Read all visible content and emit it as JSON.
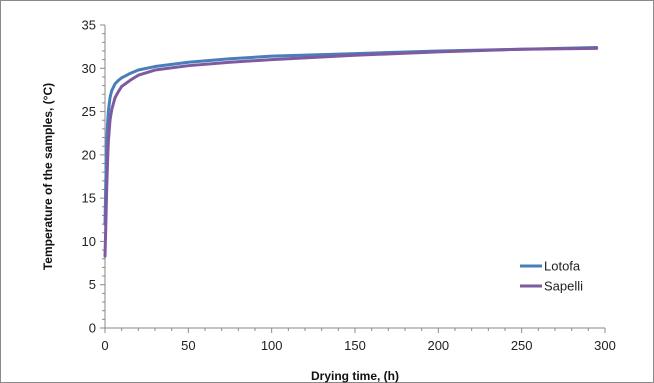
{
  "chart_data": {
    "type": "line",
    "title": "",
    "xlabel": "Drying time, (h)",
    "ylabel": "Temperature of the samples, (°C)",
    "xlim": [
      0,
      300
    ],
    "ylim": [
      0,
      35
    ],
    "xticks": [
      0,
      50,
      100,
      150,
      200,
      250,
      300
    ],
    "yticks": [
      0,
      5,
      10,
      15,
      20,
      25,
      30,
      35
    ],
    "grid": false,
    "legend_position": "bottom-right",
    "series": [
      {
        "name": "Lotofa",
        "color": "#4a7ebb",
        "x": [
          0,
          0.5,
          1,
          1.5,
          2,
          3,
          4,
          6,
          8,
          10,
          15,
          20,
          30,
          50,
          75,
          100,
          150,
          200,
          250,
          295
        ],
        "y": [
          12,
          17,
          21,
          23.5,
          25,
          26.6,
          27.4,
          28.2,
          28.6,
          28.9,
          29.4,
          29.8,
          30.2,
          30.7,
          31.1,
          31.4,
          31.7,
          32.0,
          32.2,
          32.4
        ]
      },
      {
        "name": "Sapelli",
        "color": "#7e5aa0",
        "x": [
          0,
          0.5,
          1,
          1.5,
          2,
          3,
          4,
          6,
          8,
          10,
          15,
          20,
          30,
          50,
          75,
          100,
          150,
          200,
          250,
          295
        ],
        "y": [
          8.3,
          12,
          16,
          19,
          21.5,
          24,
          25.2,
          26.6,
          27.3,
          27.9,
          28.6,
          29.2,
          29.8,
          30.3,
          30.7,
          31.0,
          31.5,
          31.9,
          32.2,
          32.3
        ]
      }
    ]
  }
}
